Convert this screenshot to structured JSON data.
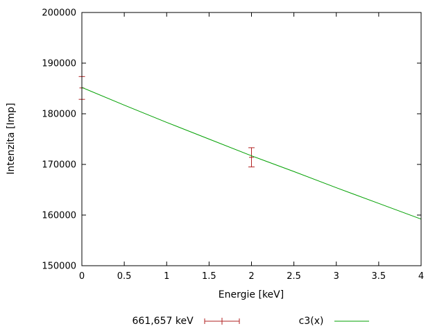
{
  "chart_data": {
    "type": "line",
    "title": "",
    "xlabel": "Energie [keV]",
    "ylabel": "Intenzita [Imp]",
    "xlim": [
      0,
      4
    ],
    "ylim": [
      150000,
      200000
    ],
    "xticks": [
      0,
      0.5,
      1,
      1.5,
      2,
      2.5,
      3,
      3.5,
      4
    ],
    "yticks": [
      150000,
      160000,
      170000,
      180000,
      190000,
      200000
    ],
    "grid": false,
    "legend_position": "bottom-center",
    "border_color": "#000000",
    "series": [
      {
        "name": "661,657 keV",
        "style": "errorbars",
        "color": "#b22222",
        "points": [
          {
            "x": 0,
            "y": 185100,
            "yerr": 2250
          },
          {
            "x": 2,
            "y": 171400,
            "yerr": 1900
          }
        ]
      },
      {
        "name": "c3(x)",
        "style": "line",
        "color": "#00a000",
        "x": [
          0,
          0.5,
          1,
          1.5,
          2,
          2.5,
          3,
          3.5,
          4
        ],
        "y": [
          185200,
          181700,
          178300,
          175000,
          171700,
          168600,
          165400,
          162300,
          159200
        ]
      }
    ]
  }
}
